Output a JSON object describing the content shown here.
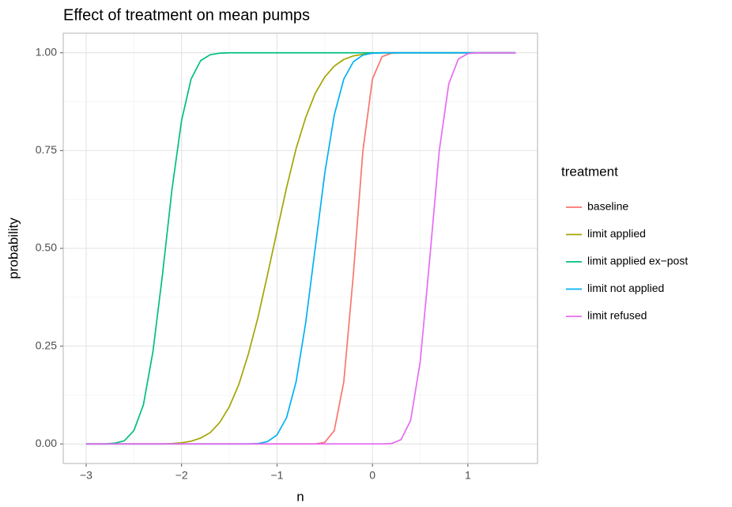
{
  "chart_data": {
    "type": "line",
    "title": "Effect of treatment on mean pumps",
    "x_label": "n",
    "y_label": "probability",
    "legend_title": "treatment",
    "grid": true,
    "x": [
      -3.0,
      -2.9,
      -2.8,
      -2.7,
      -2.6,
      -2.5,
      -2.4,
      -2.3,
      -2.2,
      -2.1,
      -2.0,
      -1.9,
      -1.8,
      -1.7,
      -1.6,
      -1.5,
      -1.4,
      -1.3,
      -1.2,
      -1.1,
      -1.0,
      -0.9,
      -0.8,
      -0.7,
      -0.6,
      -0.5,
      -0.4,
      -0.3,
      -0.2,
      -0.1,
      0.0,
      0.1,
      0.2,
      0.3,
      0.4,
      0.5,
      0.6,
      0.7,
      0.8,
      0.9,
      1.0,
      1.1,
      1.2,
      1.3,
      1.4,
      1.5
    ],
    "series": [
      {
        "name": "baseline",
        "color": "#F8766D",
        "values": [
          0,
          0,
          0,
          0,
          0,
          0,
          0,
          0,
          0,
          0,
          0,
          0,
          0,
          0,
          0,
          0,
          0,
          0,
          0,
          0,
          0,
          0,
          0,
          0,
          0,
          0.004,
          0.034,
          0.159,
          0.433,
          0.749,
          0.933,
          0.99,
          0.999,
          1,
          1,
          1,
          1,
          1,
          1,
          1,
          1,
          1,
          1,
          1,
          1,
          1
        ]
      },
      {
        "name": "limit applied",
        "color": "#A3A500",
        "values": [
          0,
          0,
          0,
          0,
          0,
          0,
          0,
          0,
          0,
          0.001,
          0.003,
          0.007,
          0.015,
          0.029,
          0.055,
          0.095,
          0.152,
          0.23,
          0.323,
          0.432,
          0.544,
          0.655,
          0.755,
          0.834,
          0.896,
          0.938,
          0.966,
          0.983,
          0.992,
          0.996,
          0.999,
          1,
          1,
          1,
          1,
          1,
          1,
          1,
          1,
          1,
          1,
          1,
          1,
          1,
          1,
          1
        ]
      },
      {
        "name": "limit applied ex−post",
        "color": "#00BF7D",
        "values": [
          0,
          0,
          0,
          0.002,
          0.008,
          0.034,
          0.1,
          0.236,
          0.433,
          0.652,
          0.827,
          0.933,
          0.98,
          0.995,
          0.999,
          1,
          1,
          1,
          1,
          1,
          1,
          1,
          1,
          1,
          1,
          1,
          1,
          1,
          1,
          1,
          1,
          1,
          1,
          1,
          1,
          1,
          1,
          1,
          1,
          1,
          1,
          1,
          1,
          1,
          1,
          1
        ]
      },
      {
        "name": "limit not applied",
        "color": "#00B0F6",
        "values": [
          0,
          0,
          0,
          0,
          0,
          0,
          0,
          0,
          0,
          0,
          0,
          0,
          0,
          0,
          0,
          0,
          0,
          0,
          0.001,
          0.006,
          0.023,
          0.067,
          0.159,
          0.309,
          0.5,
          0.691,
          0.841,
          0.933,
          0.977,
          0.994,
          0.999,
          1,
          1,
          1,
          1,
          1,
          1,
          1,
          1,
          1,
          1,
          1,
          1,
          1,
          1,
          1
        ]
      },
      {
        "name": "limit refused",
        "color": "#E76BF3",
        "values": [
          0,
          0,
          0,
          0,
          0,
          0,
          0,
          0,
          0,
          0,
          0,
          0,
          0,
          0,
          0,
          0,
          0,
          0,
          0,
          0,
          0,
          0,
          0,
          0,
          0,
          0,
          0,
          0,
          0,
          0,
          0,
          0,
          0.001,
          0.011,
          0.06,
          0.209,
          0.472,
          0.749,
          0.921,
          0.984,
          0.998,
          1,
          1,
          1,
          1,
          1
        ]
      }
    ],
    "xlim": [
      -3.24,
      1.73
    ],
    "xticks": [
      {
        "value": -3,
        "label": "−3"
      },
      {
        "value": -2,
        "label": "−2"
      },
      {
        "value": -1,
        "label": "−1"
      },
      0,
      1
    ],
    "ylim": [
      -0.05,
      1.05
    ],
    "yticks": [
      {
        "value": 0,
        "label": "0.00"
      },
      {
        "value": 0.25,
        "label": "0.25"
      },
      {
        "value": 0.5,
        "label": "0.50"
      },
      {
        "value": 0.75,
        "label": "0.75"
      },
      {
        "value": 1,
        "label": "1.00"
      }
    ]
  }
}
